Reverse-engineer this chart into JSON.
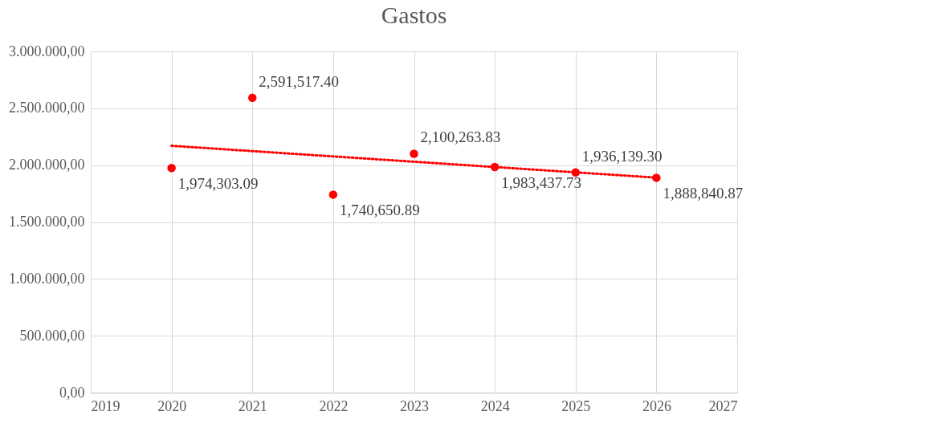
{
  "chart_data": {
    "type": "scatter",
    "title": "Gastos",
    "xlim": [
      2019,
      2027
    ],
    "xticks": [
      2019,
      2020,
      2021,
      2022,
      2023,
      2024,
      2025,
      2026,
      2027
    ],
    "ylim": [
      0,
      3000000
    ],
    "yticks": [
      {
        "value": 0,
        "label": "0,00"
      },
      {
        "value": 500000,
        "label": "500.000,00"
      },
      {
        "value": 1000000,
        "label": "1.000.000,00"
      },
      {
        "value": 1500000,
        "label": "1.500.000,00"
      },
      {
        "value": 2000000,
        "label": "2.000.000,00"
      },
      {
        "value": 2500000,
        "label": "2.500.000,00"
      },
      {
        "value": 3000000,
        "label": "3.000.000,00"
      }
    ],
    "grid": true,
    "marker": "circle",
    "series": [
      {
        "color": "#ff0000",
        "x": [
          2020,
          2021,
          2022,
          2023,
          2024,
          2025,
          2026
        ],
        "values": [
          1974303.09,
          2591517.4,
          1740650.89,
          2100263.83,
          1983437.73,
          1936139.3,
          1888840.87
        ],
        "value_labels": [
          "1,974,303.09",
          "2,591,517.40",
          "1,740,650.89",
          "2,100,263.83",
          "1,983,437.73",
          "1,936,139.30",
          "1,888,840.87"
        ]
      },
      {
        "type": "line",
        "color": "#ff0000",
        "line_style": "dotted",
        "marker": "none",
        "x": [
          2020,
          2026
        ],
        "values": [
          2170000,
          1890000
        ]
      }
    ]
  }
}
